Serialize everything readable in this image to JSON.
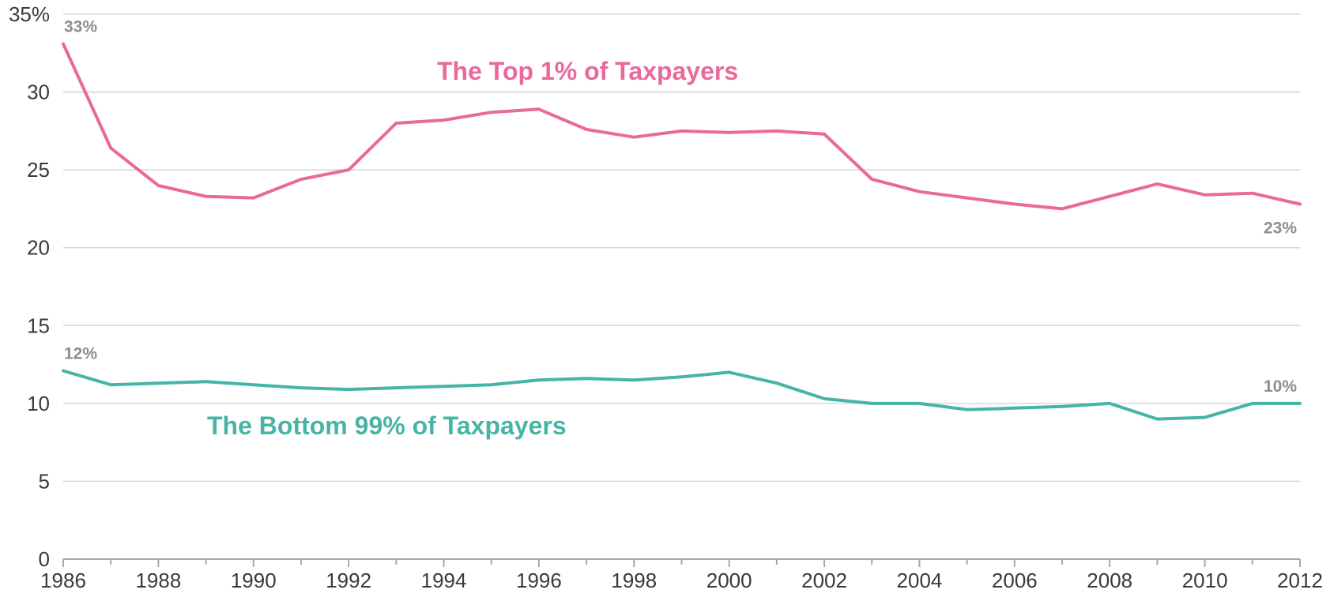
{
  "chart_data": {
    "type": "line",
    "x": [
      1986,
      1987,
      1988,
      1989,
      1990,
      1991,
      1992,
      1993,
      1994,
      1995,
      1996,
      1997,
      1998,
      1999,
      2000,
      2001,
      2002,
      2003,
      2004,
      2005,
      2006,
      2007,
      2008,
      2009,
      2010,
      2011,
      2012
    ],
    "series": [
      {
        "name": "The Top 1% of Taxpayers",
        "color": "#e8699a",
        "values": [
          33.1,
          26.4,
          24.0,
          23.3,
          23.2,
          24.4,
          25.0,
          28.0,
          28.2,
          28.7,
          28.9,
          27.6,
          27.1,
          27.5,
          27.4,
          27.5,
          27.3,
          24.4,
          23.6,
          23.2,
          22.8,
          22.5,
          23.3,
          24.1,
          23.4,
          23.5,
          22.8
        ]
      },
      {
        "name": "The Bottom 99% of Taxpayers",
        "color": "#45b5a6",
        "values": [
          12.1,
          11.2,
          11.3,
          11.4,
          11.2,
          11.0,
          10.9,
          11.0,
          11.1,
          11.2,
          11.5,
          11.6,
          11.5,
          11.7,
          12.0,
          11.3,
          10.3,
          10.0,
          10.0,
          9.6,
          9.7,
          9.8,
          10.0,
          9.0,
          9.1,
          10.0,
          10.0
        ]
      }
    ],
    "y_ticks": [
      "0",
      "5",
      "10",
      "15",
      "20",
      "25",
      "30",
      "35%"
    ],
    "y_tick_values": [
      0,
      5,
      10,
      15,
      20,
      25,
      30,
      35
    ],
    "x_ticks": [
      "1986",
      "1988",
      "1990",
      "1992",
      "1994",
      "1996",
      "1998",
      "2000",
      "2002",
      "2004",
      "2006",
      "2008",
      "2010",
      "2012"
    ],
    "ylim": [
      0,
      35
    ],
    "xlim": [
      1986,
      2012
    ],
    "grid": true,
    "annotations": [
      {
        "text": "33%",
        "x": 1986,
        "series": 0
      },
      {
        "text": "23%",
        "x": 2012,
        "series": 0
      },
      {
        "text": "12%",
        "x": 1986,
        "series": 1
      },
      {
        "text": "10%",
        "x": 2012,
        "series": 1
      }
    ]
  }
}
